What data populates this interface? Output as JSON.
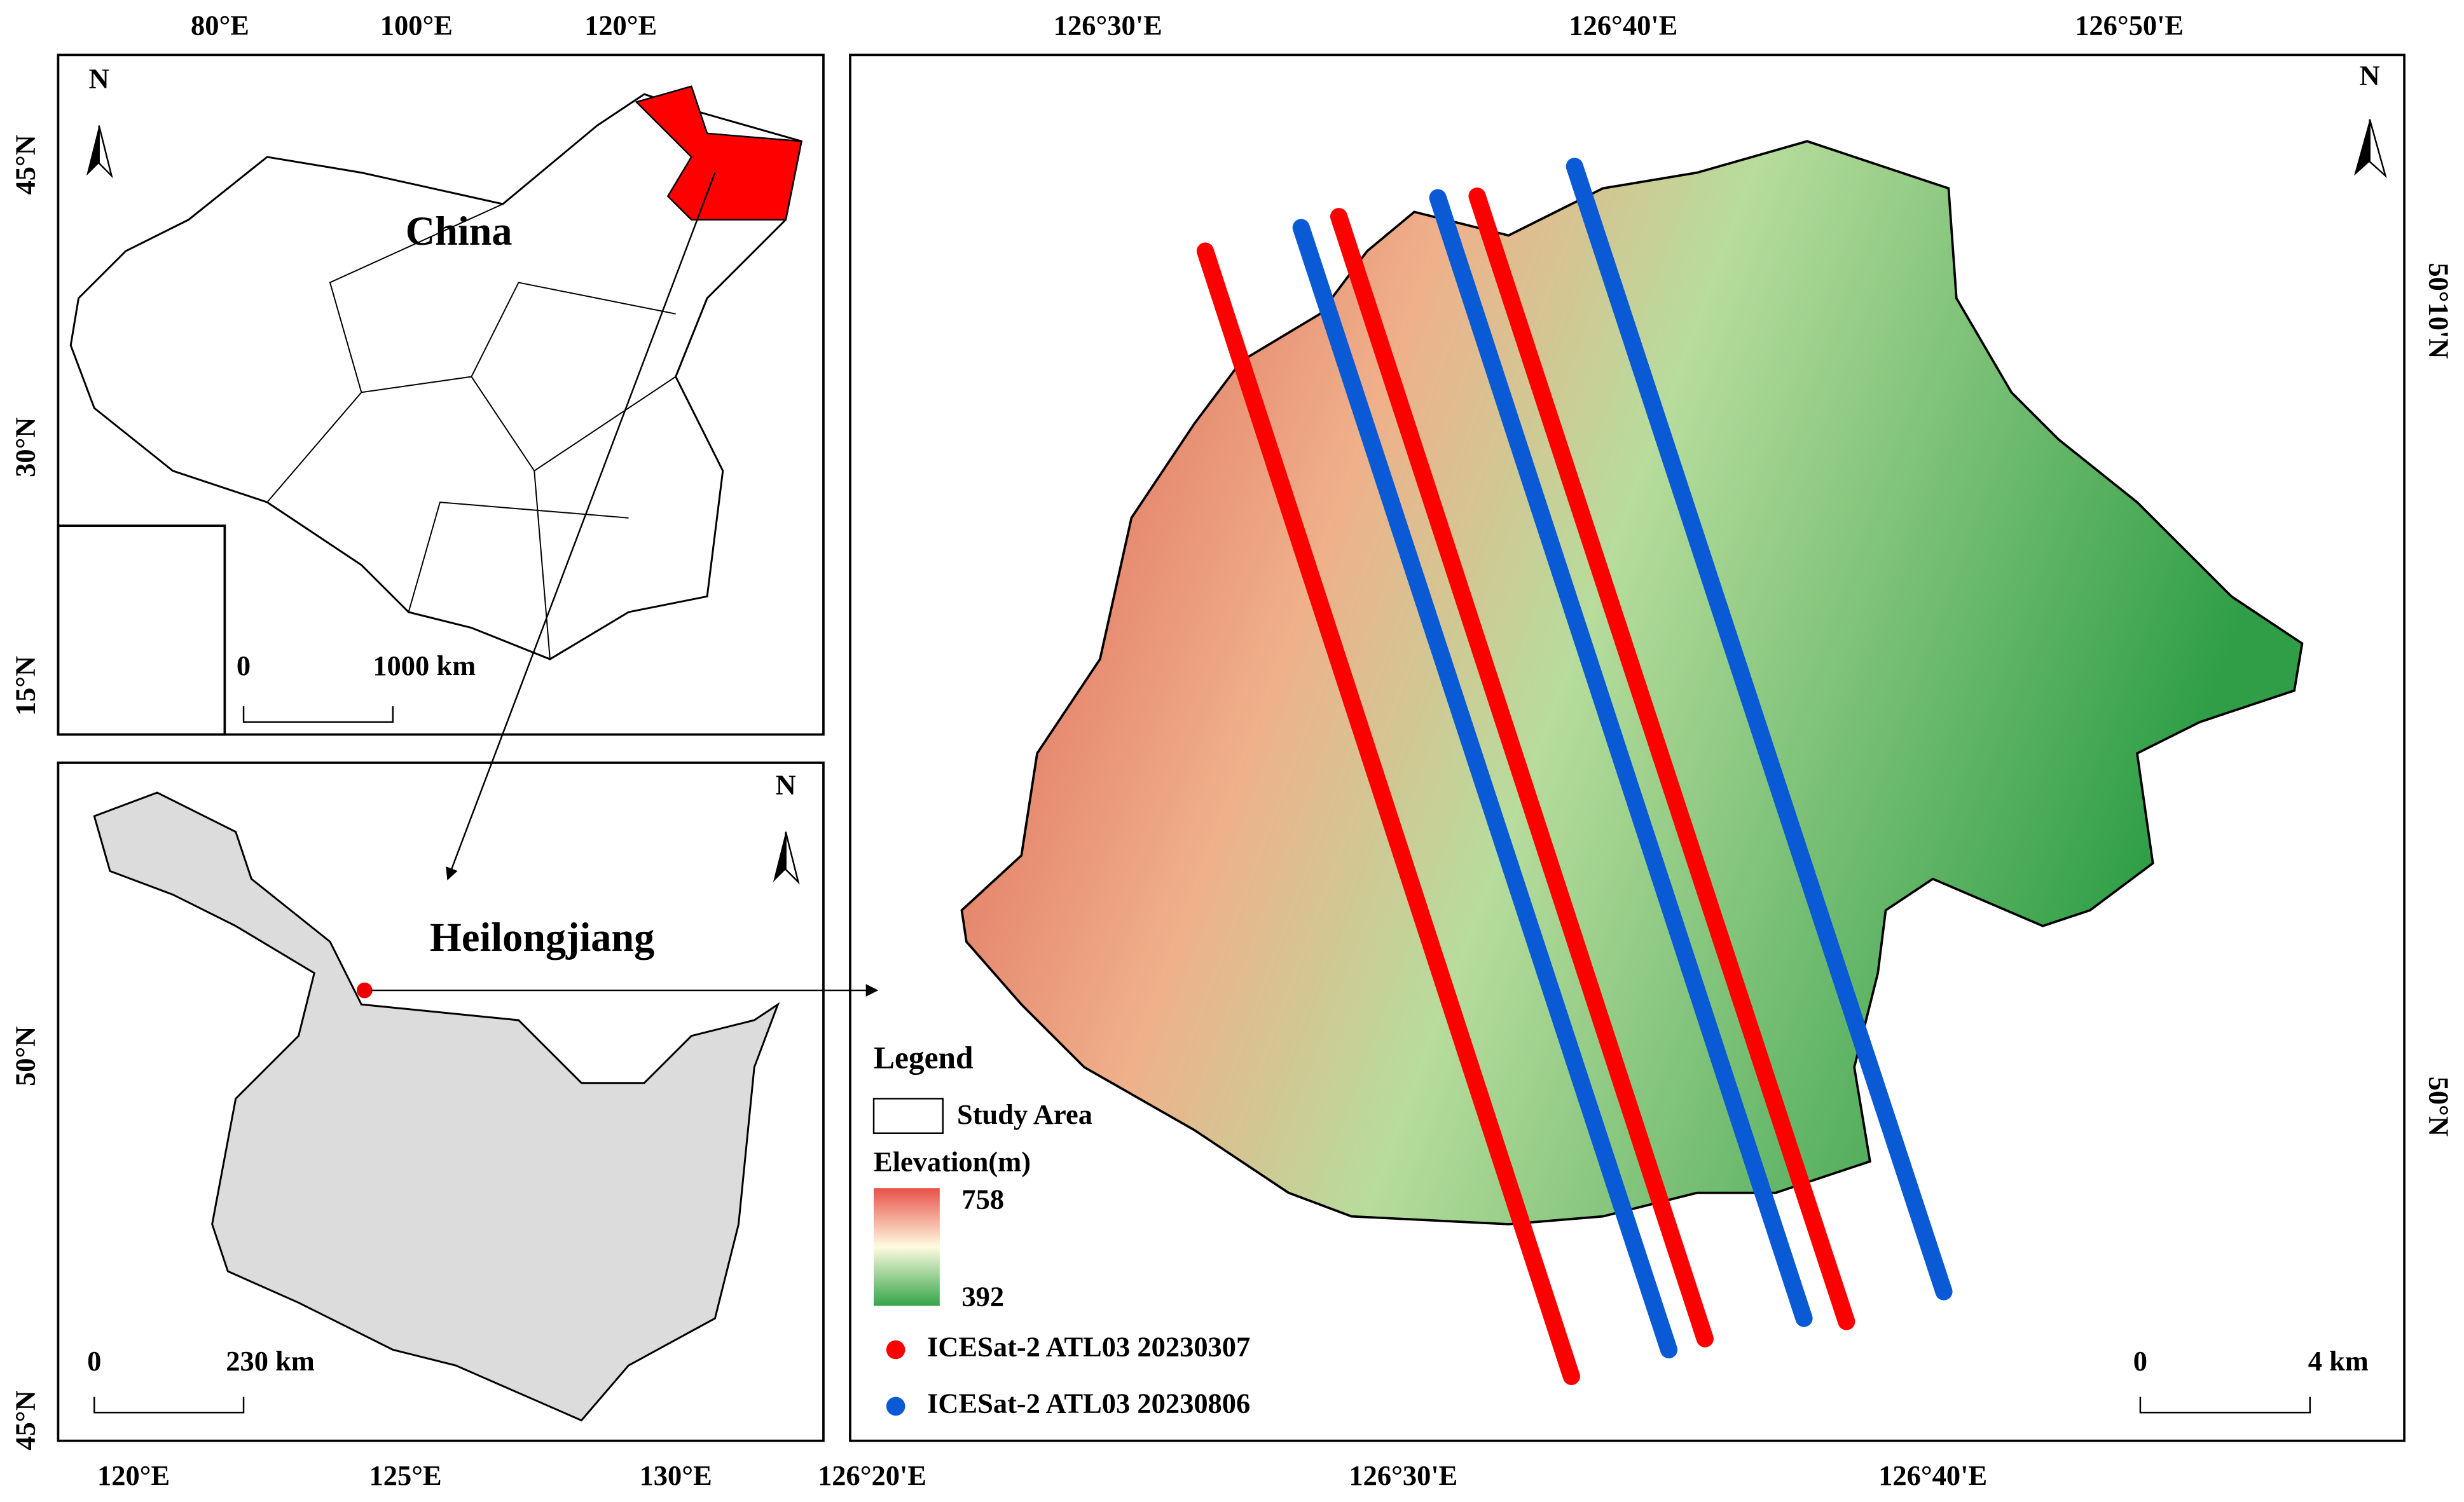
{
  "china_panel": {
    "label": "China",
    "north": "N",
    "scale_labels": [
      "0",
      "1000 km"
    ],
    "top_ticks": [
      "80°E",
      "100°E",
      "120°E"
    ],
    "left_ticks": [
      "45°N",
      "30°N",
      "15°N"
    ]
  },
  "heilongjiang_panel": {
    "label": "Heilongjiang",
    "north": "N",
    "scale_labels": [
      "0",
      "230 km"
    ],
    "bottom_ticks": [
      "120°E",
      "125°E",
      "130°E"
    ],
    "left_ticks": [
      "50°N",
      "45°N"
    ]
  },
  "study_panel": {
    "north": "N",
    "scale_labels": [
      "0",
      "4 km"
    ],
    "top_ticks": [
      "126°30'E",
      "126°40'E",
      "126°50'E"
    ],
    "bottom_ticks": [
      "126°20'E",
      "126°30'E",
      "126°40'E"
    ],
    "right_ticks": [
      "50°10'N",
      "50°N"
    ]
  },
  "legend": {
    "title": "Legend",
    "study_area": "Study Area",
    "elevation_title": "Elevation(m)",
    "elevation_max": "758",
    "elevation_min": "392",
    "tracks": [
      {
        "label": "ICESat-2 ATL03 20230307",
        "color": "#ff0000"
      },
      {
        "label": "ICESat-2 ATL03 20230806",
        "color": "#0a5ad6"
      }
    ]
  }
}
